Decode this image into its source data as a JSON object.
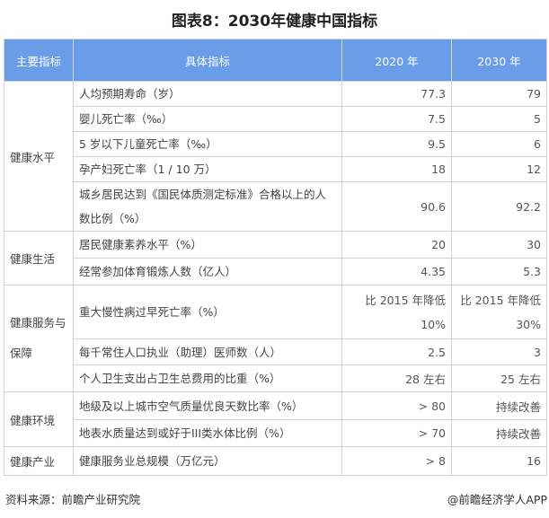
{
  "title": "图表8：2030年健康中国指标",
  "headers": [
    "主要指标",
    "具体指标",
    "2020 年",
    "2030 年"
  ],
  "groups": [
    {
      "category": "健康水平",
      "rows": [
        {
          "indicator": "人均预期寿命（岁）",
          "y2020": "77.3",
          "y2030": "79"
        },
        {
          "indicator": "婴儿死亡率（‰）",
          "y2020": "7.5",
          "y2030": "5"
        },
        {
          "indicator": "5 岁以下儿童死亡率（‰）",
          "y2020": "9.5",
          "y2030": "6"
        },
        {
          "indicator": "孕产妇死亡率（1 / 10 万）",
          "y2020": "18",
          "y2030": "12"
        },
        {
          "indicator": "城乡居民达到《国民体质测定标准》合格以上的人数比例（%）",
          "y2020": "90.6",
          "y2030": "92.2"
        }
      ]
    },
    {
      "category": "健康生活",
      "rows": [
        {
          "indicator": "居民健康素养水平（%）",
          "y2020": "20",
          "y2030": "30"
        },
        {
          "indicator": "经常参加体育锻炼人数（亿人）",
          "y2020": "4.35",
          "y2030": "5.3"
        }
      ]
    },
    {
      "category": "健康服务与保障",
      "rows": [
        {
          "indicator": "重大慢性病过早死亡率（%）",
          "y2020": "比 2015 年降低 10%",
          "y2030": "比 2015 年降低 30%"
        },
        {
          "indicator": "每千常住人口执业（助理）医师数（人）",
          "y2020": "2.5",
          "y2030": "3"
        },
        {
          "indicator": "个人卫生支出占卫生总费用的比重（%）",
          "y2020": "28 左右",
          "y2030": "25 左右"
        }
      ]
    },
    {
      "category": "健康环境",
      "rows": [
        {
          "indicator": "地级及以上城市空气质量优良天数比率（%）",
          "y2020": "> 80",
          "y2030": "持续改善"
        },
        {
          "indicator": "地表水质量达到或好于III类水体比例（%）",
          "y2020": "> 70",
          "y2030": "持续改善"
        }
      ]
    },
    {
      "category": "健康产业",
      "rows": [
        {
          "indicator": "健康服务业总规模（万亿元）",
          "y2020": "> 8",
          "y2030": "16"
        }
      ]
    }
  ],
  "footer": {
    "source": "资料来源：前瞻产业研究院",
    "credit": "@前瞻经济学人APP"
  },
  "colors": {
    "header": "#6a9de8"
  }
}
